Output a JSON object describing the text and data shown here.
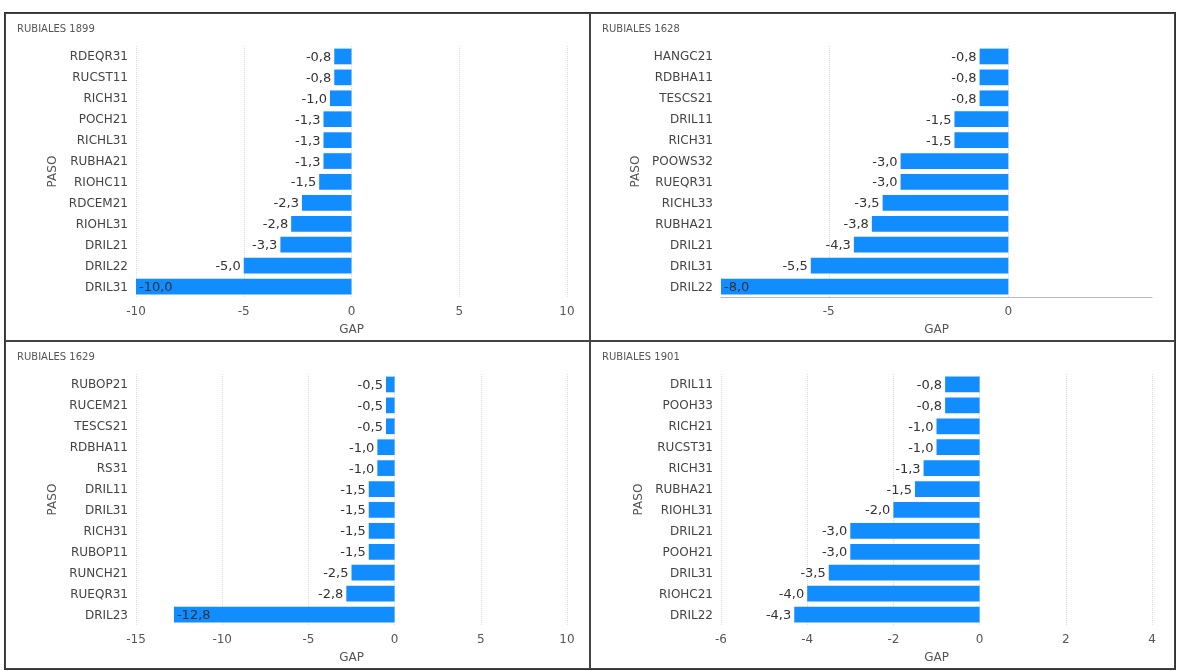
{
  "chart_data": [
    {
      "type": "bar",
      "orientation": "horizontal",
      "title": "RUBIALES 1899",
      "xlabel": "GAP",
      "ylabel": "PASO",
      "color": "#118dff",
      "grid": "x",
      "xlim": [
        -10,
        10
      ],
      "xticks": [
        -10,
        -5,
        0,
        5,
        10
      ],
      "categories": [
        "RDEQR31",
        "RUCST11",
        "RICH31",
        "POCH21",
        "RICHL31",
        "RUBHA21",
        "RIOHC11",
        "RDCEM21",
        "RIOHL31",
        "DRIL21",
        "DRIL22",
        "DRIL31"
      ],
      "values": [
        -0.8,
        -0.8,
        -1.0,
        -1.3,
        -1.3,
        -1.3,
        -1.5,
        -2.3,
        -2.8,
        -3.3,
        -5.0,
        -10.0
      ],
      "value_labels": [
        "-0,8",
        "-0,8",
        "-1,0",
        "-1,3",
        "-1,3",
        "-1,3",
        "-1,5",
        "-2,3",
        "-2,8",
        "-3,3",
        "-5,0",
        "-10,0"
      ]
    },
    {
      "type": "bar",
      "orientation": "horizontal",
      "title": "RUBIALES 1628",
      "xlabel": "GAP",
      "ylabel": "PASO",
      "color": "#118dff",
      "grid": "x",
      "xlim": [
        -8,
        4
      ],
      "xticks": [
        -5,
        0
      ],
      "categories": [
        "HANGC21",
        "RDBHA11",
        "TESCS21",
        "DRIL11",
        "RICH31",
        "POOWS32",
        "RUEQR31",
        "RICHL33",
        "RUBHA21",
        "DRIL21",
        "DRIL31",
        "DRIL22"
      ],
      "values": [
        -0.8,
        -0.8,
        -0.8,
        -1.5,
        -1.5,
        -3.0,
        -3.0,
        -3.5,
        -3.8,
        -4.3,
        -5.5,
        -8.0
      ],
      "value_labels": [
        "-0,8",
        "-0,8",
        "-0,8",
        "-1,5",
        "-1,5",
        "-3,0",
        "-3,0",
        "-3,5",
        "-3,8",
        "-4,3",
        "-5,5",
        "-8,0"
      ]
    },
    {
      "type": "bar",
      "orientation": "horizontal",
      "title": "RUBIALES 1629",
      "xlabel": "GAP",
      "ylabel": "PASO",
      "color": "#118dff",
      "grid": "x",
      "xlim": [
        -15,
        10
      ],
      "xticks": [
        -15,
        -10,
        -5,
        0,
        5,
        10
      ],
      "categories": [
        "RUBOP21",
        "RUCEM21",
        "TESCS21",
        "RDBHA11",
        "RS31",
        "DRIL11",
        "DRIL31",
        "RICH31",
        "RUBOP11",
        "RUNCH21",
        "RUEQR31",
        "DRIL23"
      ],
      "values": [
        -0.5,
        -0.5,
        -0.5,
        -1.0,
        -1.0,
        -1.5,
        -1.5,
        -1.5,
        -1.5,
        -2.5,
        -2.8,
        -12.8
      ],
      "value_labels": [
        "-0,5",
        "-0,5",
        "-0,5",
        "-1,0",
        "-1,0",
        "-1,5",
        "-1,5",
        "-1,5",
        "-1,5",
        "-2,5",
        "-2,8",
        "-12,8"
      ]
    },
    {
      "type": "bar",
      "orientation": "horizontal",
      "title": "RUBIALES 1901",
      "xlabel": "GAP",
      "ylabel": "PASO",
      "color": "#118dff",
      "grid": "x",
      "xlim": [
        -6,
        4
      ],
      "xticks": [
        -6,
        -4,
        -2,
        0,
        2,
        4
      ],
      "categories": [
        "DRIL11",
        "POOH33",
        "RICH21",
        "RUCST31",
        "RICH31",
        "RUBHA21",
        "RIOHL31",
        "DRIL21",
        "POOH21",
        "DRIL31",
        "RIOHC21",
        "DRIL22"
      ],
      "values": [
        -0.8,
        -0.8,
        -1.0,
        -1.0,
        -1.3,
        -1.5,
        -2.0,
        -3.0,
        -3.0,
        -3.5,
        -4.0,
        -4.3
      ],
      "value_labels": [
        "-0,8",
        "-0,8",
        "-1,0",
        "-1,0",
        "-1,3",
        "-1,5",
        "-2,0",
        "-3,0",
        "-3,0",
        "-3,5",
        "-4,0",
        "-4,3"
      ]
    }
  ]
}
